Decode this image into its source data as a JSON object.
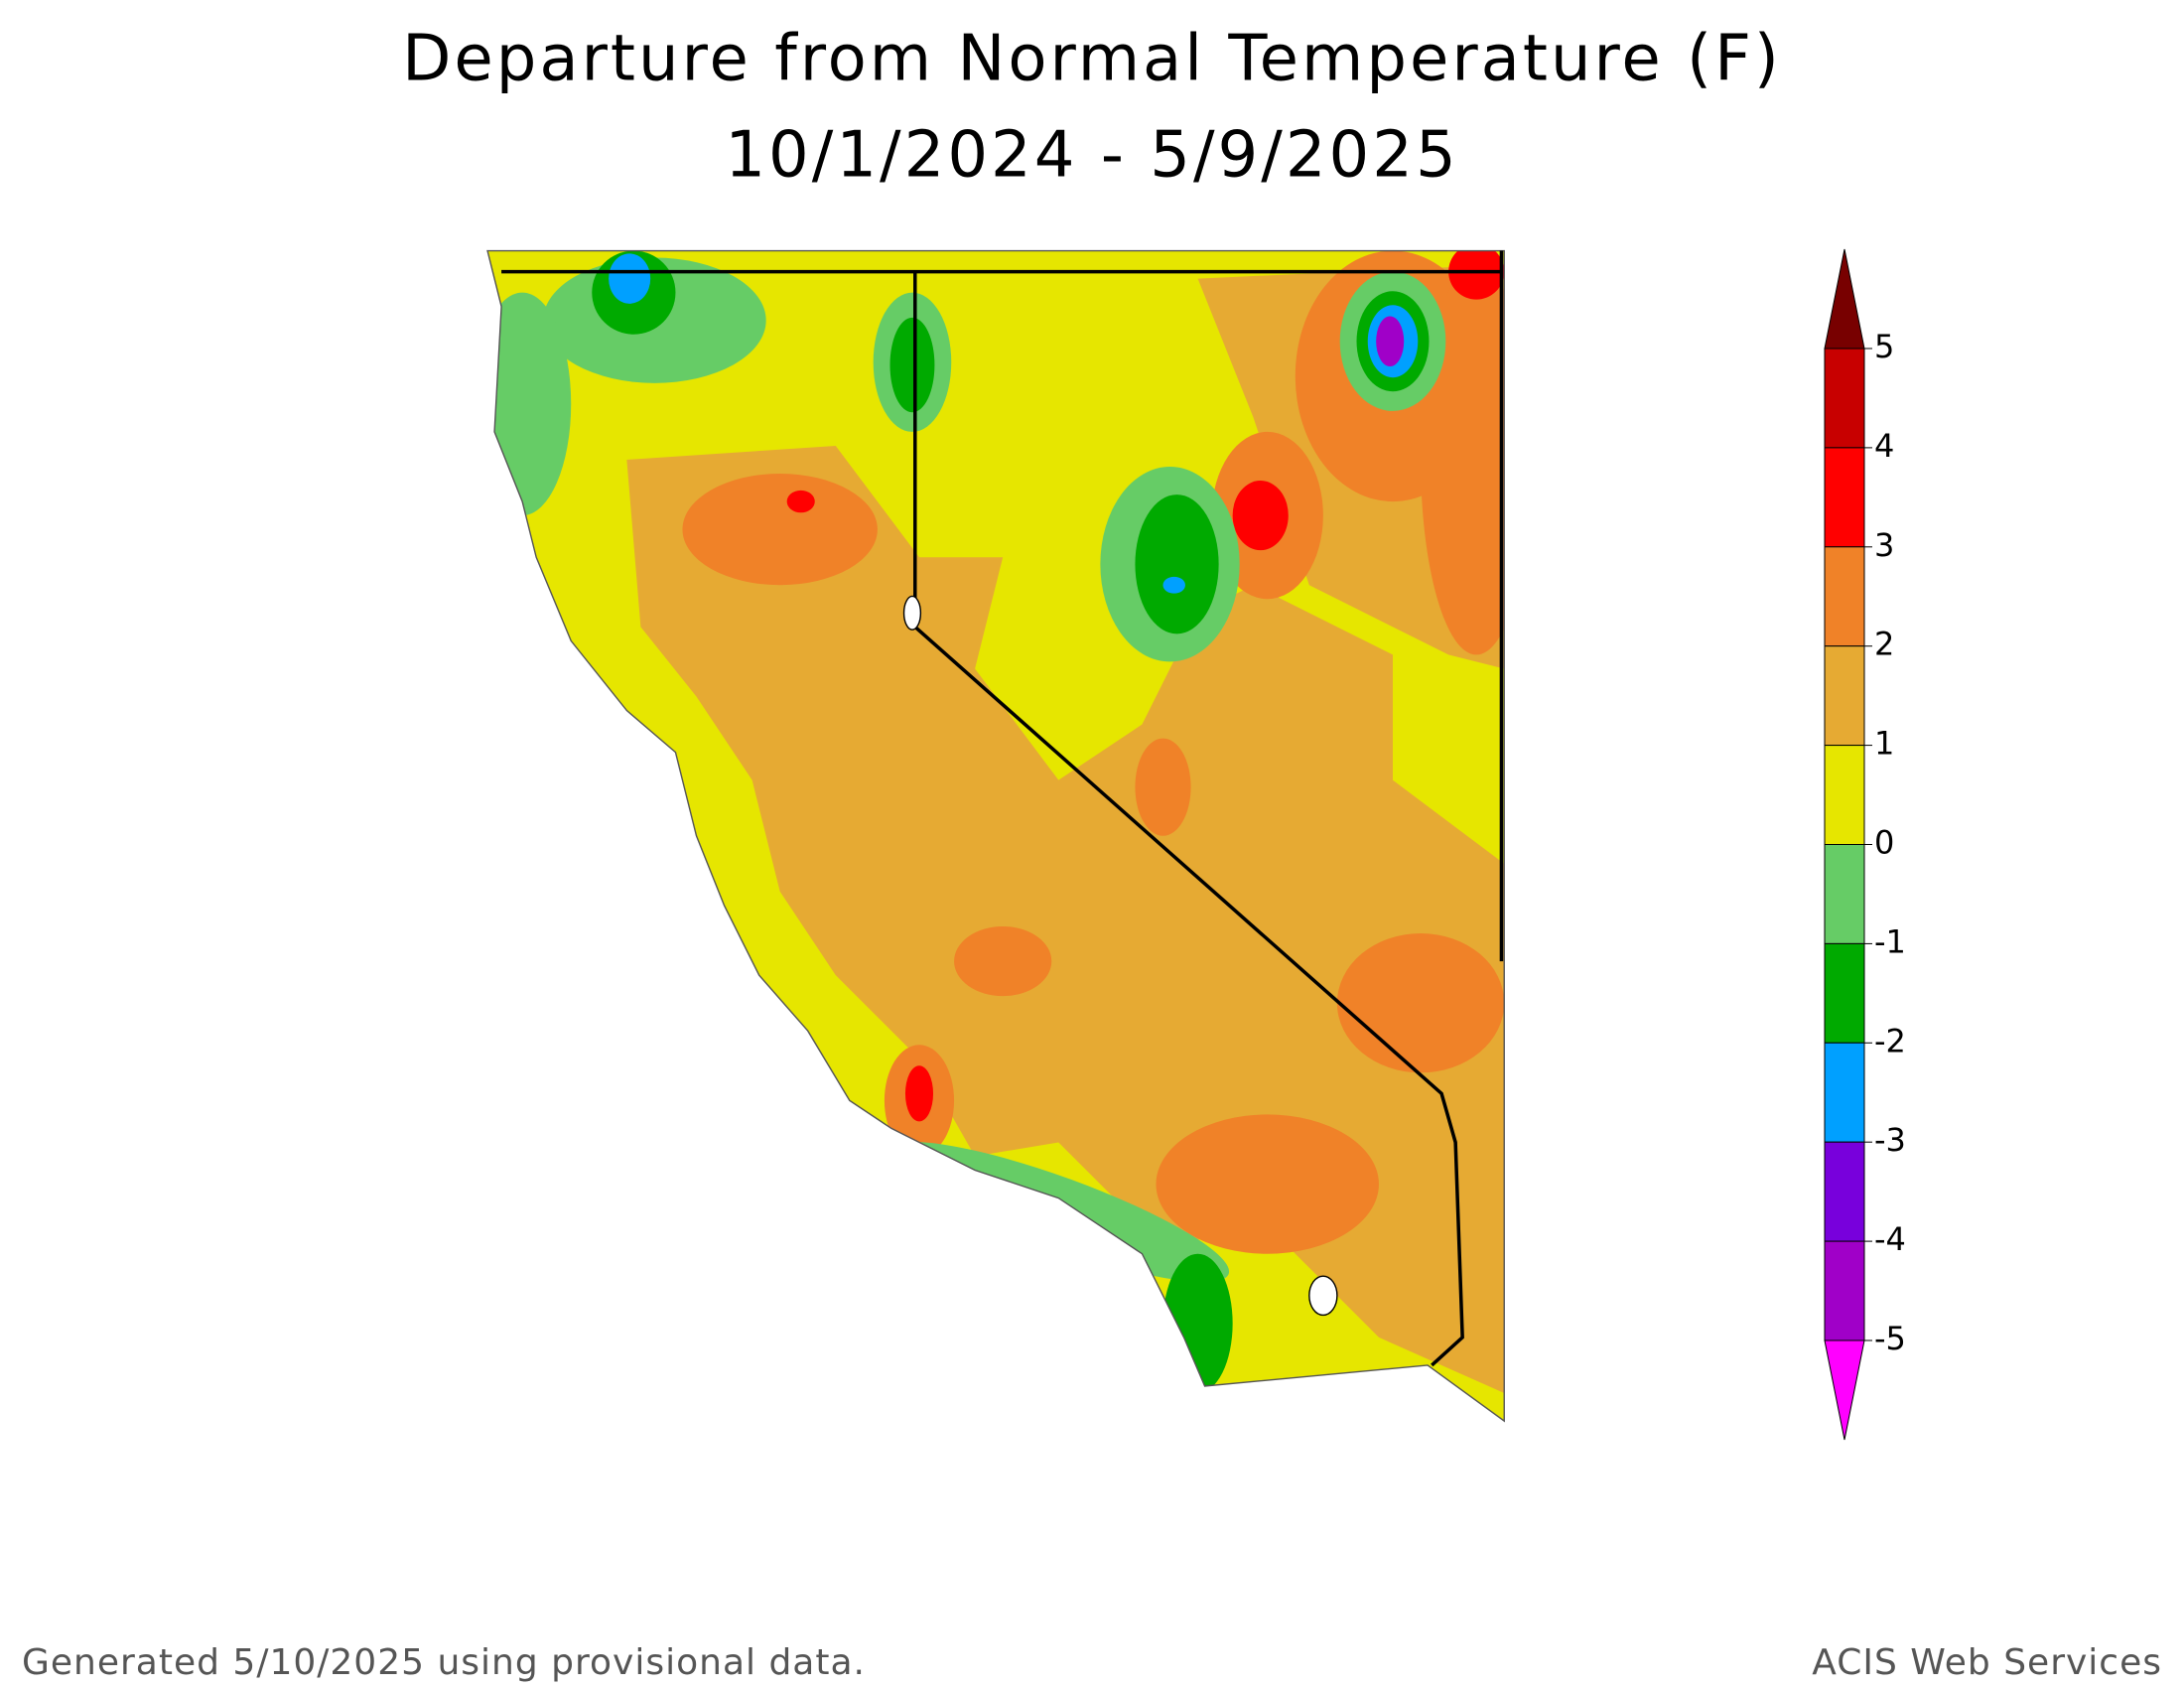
{
  "title": "Departure from Normal Temperature (F)",
  "subtitle": "10/1/2024 - 5/9/2025",
  "legend": {
    "ticks": [
      5,
      4,
      3,
      2,
      1,
      0,
      -1,
      -2,
      -3,
      -4,
      -5
    ],
    "colors": [
      "#780000",
      "#c80000",
      "#ff0000",
      "#f08228",
      "#e6aa33",
      "#e6e600",
      "#66cc66",
      "#00aa00",
      "#00a0ff",
      "#7800dc",
      "#a000c8",
      "#ff00ff"
    ]
  },
  "footer": {
    "left": "Generated 5/10/2025  using provisional data.",
    "right": "ACIS Web Services"
  }
}
